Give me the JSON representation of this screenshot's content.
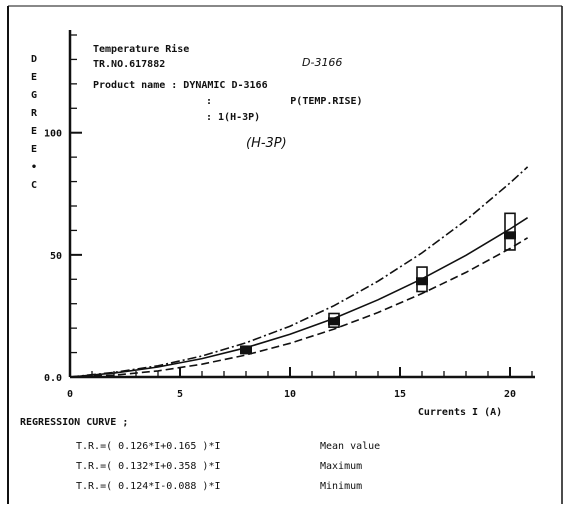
{
  "chart_data": {
    "type": "line",
    "title_lines": [
      "Temperature Rise",
      "TR.NO.617882",
      "Product name : DYNAMIC D-3166",
      ":             P(TEMP.RISE)",
      ": 1(H-3P)"
    ],
    "handwritten_notes": [
      "D-3166",
      "(H-3P)"
    ],
    "ylabel_letters": [
      "D",
      "E",
      "G",
      "R",
      "E",
      "E",
      "•",
      "C"
    ],
    "xlabel": "Currents I (A)",
    "xlim": [
      0,
      21
    ],
    "ylim": [
      0,
      70
    ],
    "x_ticks": [
      {
        "value": 0,
        "label": "0"
      },
      {
        "value": 5,
        "label": "5"
      },
      {
        "value": 10,
        "label": "10"
      },
      {
        "value": 15,
        "label": "15"
      },
      {
        "value": 20,
        "label": "20"
      }
    ],
    "y_ticks": [
      {
        "value": 0,
        "label": "0.0"
      },
      {
        "value": 25,
        "label": "50"
      },
      {
        "value": 50,
        "label": "100"
      }
    ],
    "series": [
      {
        "name": "Maximum",
        "style": "dashdot",
        "x": [
          0,
          2,
          4,
          6,
          8,
          10,
          12,
          14,
          16,
          18,
          20,
          20.8
        ],
        "y": [
          0,
          0.95,
          2.3,
          4.3,
          7.0,
          10.4,
          14.6,
          19.6,
          25.4,
          32.1,
          39.7,
          43.0
        ]
      },
      {
        "name": "Mean value",
        "style": "solid",
        "x": [
          0,
          2,
          4,
          6,
          8,
          10,
          12,
          14,
          16,
          18,
          20,
          20.8
        ],
        "y": [
          0,
          0.8,
          2.05,
          3.77,
          6.0,
          8.75,
          12.0,
          15.8,
          20.1,
          24.9,
          30.3,
          32.6
        ]
      },
      {
        "name": "Minimum",
        "style": "dashed",
        "x": [
          0,
          2,
          4,
          6,
          8,
          10,
          12,
          14,
          16,
          18,
          20,
          20.8
        ],
        "y": [
          0,
          0.37,
          1.24,
          2.63,
          4.5,
          6.9,
          9.8,
          13.2,
          17.1,
          21.4,
          26.3,
          28.5
        ]
      }
    ],
    "measurements": [
      {
        "x": 8,
        "y": 5.5,
        "low": 4.8,
        "high": 6.3
      },
      {
        "x": 12,
        "y": 11.4,
        "low": 10.2,
        "high": 13.0
      },
      {
        "x": 16,
        "y": 19.6,
        "low": 17.5,
        "high": 22.5
      },
      {
        "x": 20,
        "y": 29.0,
        "low": 26.0,
        "high": 33.5
      }
    ],
    "regression": {
      "heading": "REGRESSION CURVE ;",
      "lines": [
        {
          "formula": "T.R.=( 0.126*I+0.165 )*I",
          "label": "Mean value"
        },
        {
          "formula": "T.R.=( 0.132*I+0.358 )*I",
          "label": "Maximum"
        },
        {
          "formula": "T.R.=( 0.124*I-0.088 )*I",
          "label": "Minimum"
        }
      ]
    }
  }
}
